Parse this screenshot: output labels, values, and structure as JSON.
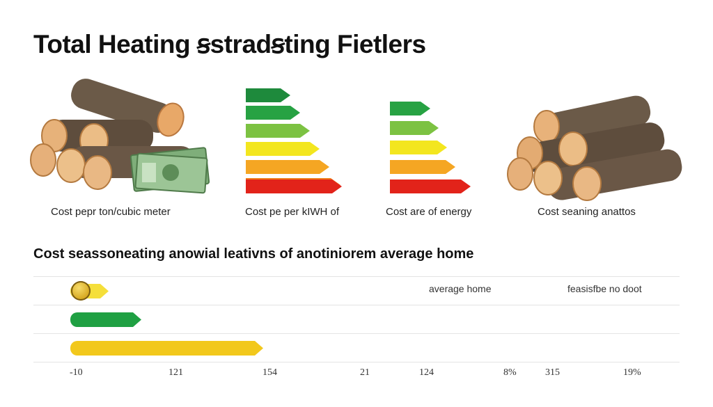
{
  "title": "Total Heating ꞩstradꞩting Fietlers",
  "panels": [
    {
      "label": "Cost pepr ton/cubic meter",
      "image": "firewood-logs-with-cash"
    },
    {
      "label": "Cost pe per kIWH of",
      "image": "energy-rating-scale-7"
    },
    {
      "label": "Cost are of energy",
      "image": "energy-rating-scale-6"
    },
    {
      "label": "Cost seaning anattos",
      "image": "firewood-logs-stack"
    }
  ],
  "colors": {
    "dark_green": "#1e8a3c",
    "green": "#27a243",
    "light_green": "#7cc242",
    "yellow": "#f3e61f",
    "orange": "#f5a623",
    "dark_orange": "#f07d1a",
    "red": "#e2231a",
    "bar_yellow": "#f2c81c"
  },
  "chart_data": {
    "type": "bar",
    "orientation": "horizontal",
    "title": "Cost seassoneating anowial leativns of anotiniorem average home",
    "series": [
      {
        "values": [
          6,
          11,
          30
        ]
      }
    ],
    "bar_colors": [
      "#f5df3a",
      "#1fa043",
      "#f2c81c"
    ],
    "row_annotations": [
      "average home",
      "feasisfbe no doot"
    ],
    "x_tick_labels": [
      "-10",
      "121",
      "154",
      "21",
      "124",
      "8%",
      "315",
      "19%"
    ],
    "xlim": [
      0,
      100
    ],
    "grid": true
  }
}
